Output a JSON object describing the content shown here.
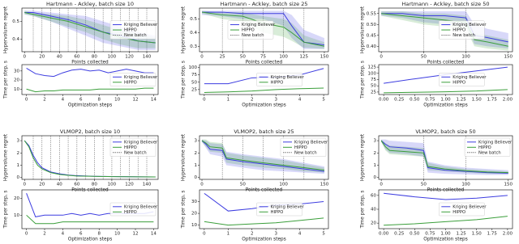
{
  "chart_data": [
    {
      "type": "line",
      "title": "Hartmann - Ackley, batch size 10",
      "xlabel": "Points collected",
      "ylabel": "Hypervolume regret",
      "x": [
        0,
        10,
        30,
        50,
        70,
        90,
        110,
        130,
        150
      ],
      "xlim": [
        -3,
        153
      ],
      "xticks": [
        0,
        20,
        40,
        60,
        80,
        100,
        120,
        140
      ],
      "ylim": [
        0.33,
        0.575
      ],
      "yticks": [
        0.4,
        0.5
      ],
      "legend": "center right",
      "series": [
        {
          "name": "Kriging Believer",
          "color": "#3d3de0",
          "values": [
            0.55,
            0.55,
            0.53,
            0.51,
            0.48,
            0.44,
            0.42,
            0.39,
            0.38
          ],
          "lower": [
            0.54,
            0.53,
            0.5,
            0.46,
            0.42,
            0.38,
            0.36,
            0.34,
            0.34
          ],
          "upper": [
            0.56,
            0.56,
            0.55,
            0.54,
            0.53,
            0.5,
            0.47,
            0.44,
            0.42
          ]
        },
        {
          "name": "HIPPO",
          "color": "#3a9e3a",
          "values": [
            0.55,
            0.54,
            0.52,
            0.5,
            0.47,
            0.44,
            0.41,
            0.39,
            0.38
          ],
          "lower": [
            0.54,
            0.53,
            0.5,
            0.47,
            0.44,
            0.4,
            0.37,
            0.35,
            0.35
          ],
          "upper": [
            0.56,
            0.55,
            0.54,
            0.53,
            0.51,
            0.48,
            0.45,
            0.43,
            0.41
          ]
        }
      ],
      "vlines": [
        10,
        20,
        30,
        40,
        50,
        60,
        70,
        80,
        90,
        100,
        110,
        120,
        130,
        140
      ],
      "vline_name": "New batch",
      "vline_color": "#777777"
    },
    {
      "type": "line",
      "title": "Hartmann - Ackley, batch size 25",
      "xlabel": "Points collected",
      "ylabel": "Hypervolume regret",
      "x": [
        0,
        25,
        50,
        75,
        100,
        110,
        125,
        150
      ],
      "xlim": [
        -3,
        155
      ],
      "xticks": [
        0,
        25,
        50,
        75,
        100,
        125,
        150
      ],
      "ylim": [
        0.26,
        0.58
      ],
      "yticks": [
        0.3,
        0.4,
        0.5
      ],
      "legend": "center left",
      "series": [
        {
          "name": "Kriging Believer",
          "color": "#3d3de0",
          "values": [
            0.55,
            0.55,
            0.54,
            0.54,
            0.54,
            0.45,
            0.33,
            0.31
          ],
          "lower": [
            0.53,
            0.52,
            0.5,
            0.5,
            0.45,
            0.36,
            0.28,
            0.28
          ],
          "upper": [
            0.56,
            0.56,
            0.56,
            0.56,
            0.56,
            0.53,
            0.42,
            0.36
          ]
        },
        {
          "name": "HIPPO",
          "color": "#3a9e3a",
          "values": [
            0.55,
            0.53,
            0.52,
            0.47,
            0.44,
            0.4,
            0.33,
            0.3
          ],
          "lower": [
            0.54,
            0.5,
            0.48,
            0.4,
            0.37,
            0.34,
            0.29,
            0.28
          ],
          "upper": [
            0.56,
            0.55,
            0.55,
            0.52,
            0.5,
            0.47,
            0.38,
            0.33
          ]
        }
      ],
      "vlines": [
        25,
        50,
        75,
        100,
        125
      ],
      "vline_name": "New batch",
      "vline_color": "#777777"
    },
    {
      "type": "line",
      "title": "Hartmann - Ackley, batch size 50",
      "xlabel": "Points collected",
      "ylabel": "Hypervolume regret",
      "x": [
        0,
        25,
        50,
        75,
        100,
        110,
        125,
        150
      ],
      "xlim": [
        -3,
        155
      ],
      "xticks": [
        0,
        50,
        100,
        150
      ],
      "ylim": [
        0.375,
        0.575
      ],
      "yticks": [
        {
          "value": 0.4,
          "label": "0.40"
        },
        {
          "value": 0.45,
          "label": "0.45"
        },
        {
          "value": 0.5,
          "label": "0.50"
        },
        {
          "value": 0.55,
          "label": "0.55"
        }
      ],
      "legend": "center",
      "series": [
        {
          "name": "Kriging Believer",
          "color": "#3d3de0",
          "values": [
            0.55,
            0.55,
            0.54,
            0.54,
            0.53,
            0.45,
            0.44,
            0.42
          ],
          "lower": [
            0.54,
            0.53,
            0.51,
            0.5,
            0.49,
            0.41,
            0.4,
            0.39
          ],
          "upper": [
            0.56,
            0.56,
            0.56,
            0.56,
            0.56,
            0.5,
            0.48,
            0.46
          ]
        },
        {
          "name": "HIPPO",
          "color": "#3a9e3a",
          "values": [
            0.55,
            0.54,
            0.53,
            0.52,
            0.51,
            0.43,
            0.42,
            0.4
          ],
          "lower": [
            0.54,
            0.52,
            0.5,
            0.49,
            0.48,
            0.4,
            0.39,
            0.38
          ],
          "upper": [
            0.56,
            0.56,
            0.55,
            0.55,
            0.54,
            0.46,
            0.45,
            0.43
          ]
        }
      ],
      "vlines": [
        50,
        100
      ],
      "vline_name": "New batch",
      "vline_color": "#777777"
    },
    {
      "type": "line",
      "xlabel": "Optimization steps",
      "ylabel": "Time per step, s",
      "x": [
        0,
        1,
        2,
        3,
        4,
        5,
        6,
        7,
        8,
        9,
        10,
        11,
        12,
        13,
        14
      ],
      "xlim": [
        -0.5,
        14.5
      ],
      "xticks": [
        0,
        2,
        4,
        6,
        8,
        10,
        12,
        14
      ],
      "ylim": [
        4,
        37
      ],
      "yticks": [
        10,
        20,
        30
      ],
      "legend": "center right",
      "series": [
        {
          "name": "Kriging Believer",
          "color": "#3d3de0",
          "values": [
            33,
            27,
            25,
            24,
            28,
            31,
            32,
            30,
            31,
            28,
            30,
            32,
            30,
            28,
            28
          ]
        },
        {
          "name": "HIPPO",
          "color": "#3a9e3a",
          "values": [
            10,
            7,
            8,
            8,
            9,
            9,
            9,
            9,
            10,
            10,
            10,
            10,
            10,
            11,
            11
          ]
        }
      ]
    },
    {
      "type": "line",
      "xlabel": "Optimization steps",
      "ylabel": "Time per step, s",
      "x": [
        0,
        1,
        2,
        3,
        4,
        5
      ],
      "xlim": [
        -0.2,
        5.2
      ],
      "xticks": [
        0,
        1,
        2,
        3,
        4,
        5
      ],
      "ylim": [
        8,
        110
      ],
      "yticks": [
        25,
        50,
        75,
        100
      ],
      "legend": "center",
      "series": [
        {
          "name": "Kriging Believer",
          "color": "#3d3de0",
          "values": [
            45,
            45,
            65,
            67,
            75,
            97
          ]
        },
        {
          "name": "HIPPO",
          "color": "#3a9e3a",
          "values": [
            15,
            17,
            20,
            25,
            28,
            30
          ]
        }
      ]
    },
    {
      "type": "line",
      "xlabel": "Optimization steps",
      "ylabel": "Time per step, s",
      "x": [
        0,
        0.5,
        1,
        1.5,
        2
      ],
      "xlim": [
        -0.08,
        2.08
      ],
      "xticks": [
        {
          "value": 0,
          "label": "0.00"
        },
        {
          "value": 0.25,
          "label": "0.25"
        },
        {
          "value": 0.5,
          "label": "0.50"
        },
        {
          "value": 0.75,
          "label": "0.75"
        },
        {
          "value": 1,
          "label": "1.00"
        },
        {
          "value": 1.25,
          "label": "1.25"
        },
        {
          "value": 1.5,
          "label": "1.50"
        },
        {
          "value": 1.75,
          "label": "1.75"
        },
        {
          "value": 2,
          "label": "2.00"
        }
      ],
      "ylim": [
        15,
        135
      ],
      "yticks": [
        25,
        50,
        75,
        100,
        125
      ],
      "legend": "center",
      "series": [
        {
          "name": "Kriging Believer",
          "color": "#3d3de0",
          "values": [
            60,
            78,
            95,
            110,
            125
          ]
        },
        {
          "name": "HIPPO",
          "color": "#3a9e3a",
          "values": [
            22,
            24,
            26,
            29,
            35
          ]
        }
      ]
    },
    {
      "type": "line",
      "title": "VLMOP2, batch size 10",
      "xlabel": "Points collected",
      "ylabel": "Hypervolume regret",
      "x": [
        0,
        5,
        10,
        15,
        20,
        30,
        40,
        50,
        60,
        80,
        100,
        150
      ],
      "xlim": [
        -3,
        153
      ],
      "xticks": [
        0,
        20,
        40,
        60,
        80,
        100,
        120,
        140
      ],
      "ylim": [
        -0.15,
        3.4
      ],
      "yticks": [
        0,
        1,
        2,
        3
      ],
      "legend": "upper right",
      "series": [
        {
          "name": "Kriging Believer",
          "color": "#3d3de0",
          "values": [
            3.0,
            2.6,
            1.8,
            1.2,
            0.8,
            0.45,
            0.3,
            0.2,
            0.15,
            0.1,
            0.08,
            0.05
          ]
        },
        {
          "name": "HIPPO",
          "color": "#3a9e3a",
          "values": [
            3.0,
            2.5,
            1.6,
            1.0,
            0.7,
            0.4,
            0.25,
            0.18,
            0.12,
            0.1,
            0.07,
            0.05
          ]
        }
      ],
      "vlines": [
        10,
        20,
        30,
        40,
        50,
        60,
        70,
        80,
        90,
        100,
        110,
        120,
        130,
        140
      ],
      "vline_name": "New batch",
      "vline_color": "#777777"
    },
    {
      "type": "line",
      "title": "VLMOP2, batch size 25",
      "xlabel": "Points collected",
      "ylabel": "Hypervolume regret",
      "x": [
        0,
        5,
        10,
        25,
        30,
        50,
        75,
        100,
        125,
        150
      ],
      "xlim": [
        -3,
        155
      ],
      "xticks": [
        0,
        50,
        100,
        150
      ],
      "ylim": [
        -0.15,
        3.4
      ],
      "yticks": [
        0,
        1,
        2,
        3
      ],
      "legend": "upper right",
      "series": [
        {
          "name": "Kriging Believer",
          "color": "#3d3de0",
          "values": [
            3.0,
            2.7,
            2.3,
            2.2,
            1.5,
            1.3,
            1.1,
            0.9,
            0.7,
            0.5
          ],
          "lower": [
            2.9,
            2.4,
            1.9,
            1.7,
            1.0,
            0.8,
            0.6,
            0.5,
            0.4,
            0.3
          ],
          "upper": [
            3.1,
            3.0,
            2.8,
            2.7,
            2.1,
            1.9,
            1.7,
            1.5,
            1.2,
            0.9
          ]
        },
        {
          "name": "HIPPO",
          "color": "#3a9e3a",
          "values": [
            3.0,
            2.8,
            2.5,
            2.4,
            1.6,
            1.4,
            1.2,
            1.0,
            0.8,
            0.6
          ],
          "lower": [
            2.9,
            2.5,
            2.1,
            2.0,
            1.2,
            1.0,
            0.8,
            0.7,
            0.5,
            0.4
          ],
          "upper": [
            3.1,
            3.1,
            2.9,
            2.8,
            2.0,
            1.8,
            1.6,
            1.4,
            1.1,
            0.8
          ]
        }
      ],
      "vlines": [
        25,
        50,
        75,
        100,
        125
      ],
      "vline_name": "New batch",
      "vline_color": "#777777"
    },
    {
      "type": "line",
      "title": "VLMOP2, batch size 50",
      "xlabel": "Points collected",
      "ylabel": "Hypervolume regret",
      "x": [
        0,
        5,
        10,
        30,
        50,
        55,
        75,
        100,
        125,
        150
      ],
      "xlim": [
        -3,
        155
      ],
      "xticks": [
        0,
        50,
        100,
        150
      ],
      "ylim": [
        -0.15,
        3.4
      ],
      "yticks": [
        0,
        1,
        2,
        3
      ],
      "legend": "upper right",
      "series": [
        {
          "name": "Kriging Believer",
          "color": "#3d3de0",
          "values": [
            3.0,
            2.7,
            2.5,
            2.4,
            2.2,
            0.8,
            0.6,
            0.5,
            0.4,
            0.35
          ],
          "lower": [
            2.9,
            2.3,
            2.0,
            1.9,
            1.7,
            0.4,
            0.3,
            0.25,
            0.2,
            0.2
          ],
          "upper": [
            3.1,
            3.1,
            3.0,
            2.9,
            2.8,
            1.3,
            1.0,
            0.8,
            0.7,
            0.6
          ]
        },
        {
          "name": "HIPPO",
          "color": "#3a9e3a",
          "values": [
            3.0,
            2.5,
            2.2,
            2.1,
            2.0,
            0.9,
            0.7,
            0.55,
            0.45,
            0.4
          ],
          "lower": [
            2.9,
            2.2,
            1.9,
            1.8,
            1.7,
            0.6,
            0.5,
            0.4,
            0.3,
            0.3
          ],
          "upper": [
            3.1,
            2.8,
            2.6,
            2.5,
            2.4,
            1.2,
            0.9,
            0.7,
            0.6,
            0.5
          ]
        }
      ],
      "vlines": [
        50,
        100
      ],
      "vline_name": "New batch",
      "vline_color": "#777777"
    },
    {
      "type": "line",
      "xlabel": "Optimization steps",
      "ylabel": "Time per step, s",
      "x": [
        0,
        1,
        2,
        3,
        4,
        5,
        6,
        7,
        8,
        9,
        10,
        11,
        12,
        13,
        14
      ],
      "xlim": [
        -0.5,
        14.5
      ],
      "xticks": [
        0,
        2,
        4,
        6,
        8,
        10,
        12,
        14
      ],
      "ylim": [
        2,
        25
      ],
      "yticks": [
        10,
        20
      ],
      "legend": "center right",
      "series": [
        {
          "name": "Kriging Believer",
          "color": "#3d3de0",
          "values": [
            23,
            9,
            10,
            10,
            10,
            11,
            10,
            11,
            10,
            11,
            11,
            11,
            11,
            11,
            12
          ]
        },
        {
          "name": "HIPPO",
          "color": "#3a9e3a",
          "values": [
            10,
            5,
            5,
            5,
            6,
            6,
            6,
            6,
            6,
            6,
            6,
            6,
            6,
            6,
            6
          ]
        }
      ]
    },
    {
      "type": "line",
      "xlabel": "Optimization steps",
      "ylabel": "Time per step, s",
      "x": [
        0,
        1,
        2,
        3,
        4,
        5
      ],
      "xlim": [
        -0.2,
        5.2
      ],
      "xticks": [
        0,
        1,
        2,
        3,
        4,
        5
      ],
      "ylim": [
        7,
        40
      ],
      "yticks": [
        10,
        20,
        30
      ],
      "legend": "center",
      "series": [
        {
          "name": "Kriging Believer",
          "color": "#3d3de0",
          "values": [
            37,
            22,
            24,
            27,
            28,
            30
          ]
        },
        {
          "name": "HIPPO",
          "color": "#3a9e3a",
          "values": [
            13,
            10,
            11,
            12,
            14,
            16
          ]
        }
      ]
    },
    {
      "type": "line",
      "xlabel": "Optimization steps",
      "ylabel": "Time per step, s",
      "x": [
        0,
        0.5,
        1,
        1.5,
        2
      ],
      "xlim": [
        -0.08,
        2.08
      ],
      "xticks": [
        {
          "value": 0,
          "label": "0.00"
        },
        {
          "value": 0.25,
          "label": "0.25"
        },
        {
          "value": 0.5,
          "label": "0.50"
        },
        {
          "value": 0.75,
          "label": "0.75"
        },
        {
          "value": 1,
          "label": "1.00"
        },
        {
          "value": 1.25,
          "label": "1.25"
        },
        {
          "value": 1.5,
          "label": "1.50"
        },
        {
          "value": 1.75,
          "label": "1.75"
        },
        {
          "value": 2,
          "label": "2.00"
        }
      ],
      "ylim": [
        12,
        68
      ],
      "yticks": [
        20,
        40,
        60
      ],
      "legend": "center",
      "series": [
        {
          "name": "Kriging Believer",
          "color": "#3d3de0",
          "values": [
            63,
            58,
            54,
            56,
            60
          ]
        },
        {
          "name": "HIPPO",
          "color": "#3a9e3a",
          "values": [
            17,
            19,
            22,
            25,
            30
          ]
        }
      ]
    }
  ]
}
